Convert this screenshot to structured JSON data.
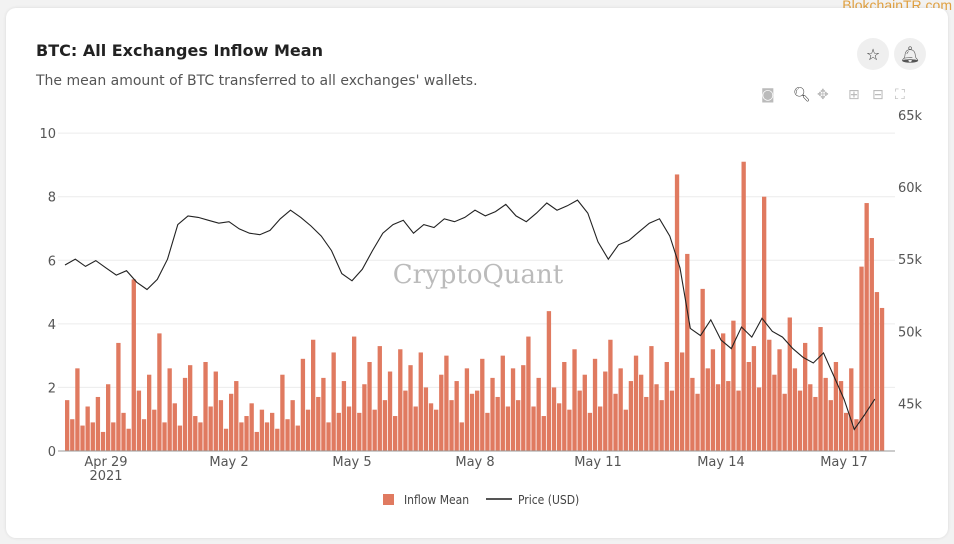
{
  "watermark_corner": "BlokchainTR.com",
  "header": {
    "title": "BTC: All Exchanges Inflow Mean",
    "subtitle": "The mean amount of BTC transferred to all exchanges' wallets."
  },
  "icons": {
    "favorite": "star-icon",
    "notify": "bell-icon",
    "toolbar": [
      "camera-icon",
      "zoom-icon",
      "pan-icon",
      "zoom-in-icon",
      "zoom-out-icon",
      "autoscale-icon"
    ]
  },
  "chart_watermark": "CryptoQuant",
  "chart_data": {
    "type": "bar+line",
    "x_start": "2021-04-28 00:00",
    "x_ticks": [
      "Apr 29",
      "May 2",
      "May 5",
      "May 8",
      "May 11",
      "May 14",
      "May 17"
    ],
    "x_tick_year": "2021",
    "y_left": {
      "ticks": [
        "0",
        "2",
        "4",
        "6",
        "8",
        "10"
      ],
      "range": [
        0,
        10.57
      ]
    },
    "y_right": {
      "ticks": [
        "45k",
        "50k",
        "55k",
        "60k",
        "65k"
      ],
      "range": [
        41.7,
        65
      ],
      "unit": "k USD"
    },
    "grid": true,
    "legend": {
      "placement": "bottom",
      "entries": [
        "Inflow Mean",
        "Price (USD)"
      ]
    },
    "colors": {
      "bar": "#e07a60",
      "line": "#222222"
    },
    "series": [
      {
        "name": "Inflow Mean",
        "axis": "left",
        "interval_hours": 3,
        "values": [
          1.6,
          1.0,
          2.6,
          0.8,
          1.4,
          0.9,
          1.7,
          0.6,
          2.1,
          0.9,
          3.4,
          1.2,
          0.7,
          5.4,
          1.9,
          1.0,
          2.4,
          1.3,
          3.7,
          0.9,
          2.6,
          1.5,
          0.8,
          2.3,
          2.7,
          1.1,
          0.9,
          2.8,
          1.4,
          2.5,
          1.6,
          0.7,
          1.8,
          2.2,
          0.9,
          1.1,
          1.5,
          0.6,
          1.3,
          0.9,
          1.2,
          0.7,
          2.4,
          1.0,
          1.6,
          0.8,
          2.9,
          1.3,
          3.5,
          1.7,
          2.3,
          0.9,
          3.1,
          1.2,
          2.2,
          1.4,
          3.6,
          1.2,
          2.1,
          2.8,
          1.3,
          3.3,
          1.6,
          2.5,
          1.1,
          3.2,
          1.9,
          2.7,
          1.4,
          3.1,
          2.0,
          1.5,
          1.3,
          2.4,
          3.0,
          1.6,
          2.2,
          0.9,
          2.6,
          1.8,
          1.9,
          2.9,
          1.2,
          2.3,
          1.7,
          3.0,
          1.4,
          2.6,
          1.6,
          2.7,
          3.6,
          1.4,
          2.3,
          1.1,
          4.4,
          2.0,
          1.5,
          2.8,
          1.3,
          3.2,
          1.9,
          2.4,
          1.2,
          2.9,
          1.4,
          2.5,
          3.5,
          1.8,
          2.6,
          1.3,
          2.2,
          3.0,
          2.4,
          1.7,
          3.3,
          2.1,
          1.6,
          2.8,
          1.9,
          8.7,
          3.1,
          6.2,
          2.3,
          1.8,
          5.1,
          2.6,
          3.2,
          2.1,
          3.7,
          2.2,
          4.1,
          1.9,
          9.1,
          2.8,
          3.3,
          2.0,
          8.0,
          3.5,
          2.4,
          3.2,
          1.8,
          4.2,
          2.6,
          1.9,
          3.4,
          2.1,
          1.7,
          3.9,
          2.3,
          1.6,
          2.8,
          2.2,
          1.2,
          2.6,
          1.0,
          5.8,
          7.8,
          6.7,
          5.0,
          4.5
        ]
      },
      {
        "name": "Price (USD)",
        "axis": "right",
        "interval_hours": 6,
        "values": [
          54.6,
          55.0,
          54.5,
          54.9,
          54.4,
          53.9,
          54.2,
          53.4,
          52.9,
          53.6,
          55.0,
          57.4,
          58.0,
          57.9,
          57.7,
          57.5,
          57.6,
          57.1,
          56.8,
          56.7,
          57.0,
          57.8,
          58.4,
          57.9,
          57.3,
          56.6,
          55.6,
          54.0,
          53.5,
          54.3,
          55.6,
          56.8,
          57.4,
          57.7,
          56.8,
          57.4,
          57.2,
          57.8,
          57.6,
          57.9,
          58.4,
          58.0,
          58.3,
          58.8,
          58.0,
          57.6,
          58.2,
          58.9,
          58.4,
          58.7,
          59.1,
          58.2,
          56.2,
          55.0,
          56.0,
          56.3,
          56.9,
          57.5,
          57.8,
          56.6,
          54.4,
          50.2,
          49.7,
          50.8,
          49.4,
          48.8,
          50.3,
          49.6,
          50.9,
          50.0,
          49.6,
          48.8,
          48.2,
          47.8,
          48.5,
          46.9,
          45.3,
          43.2,
          44.2,
          45.3
        ]
      }
    ]
  }
}
